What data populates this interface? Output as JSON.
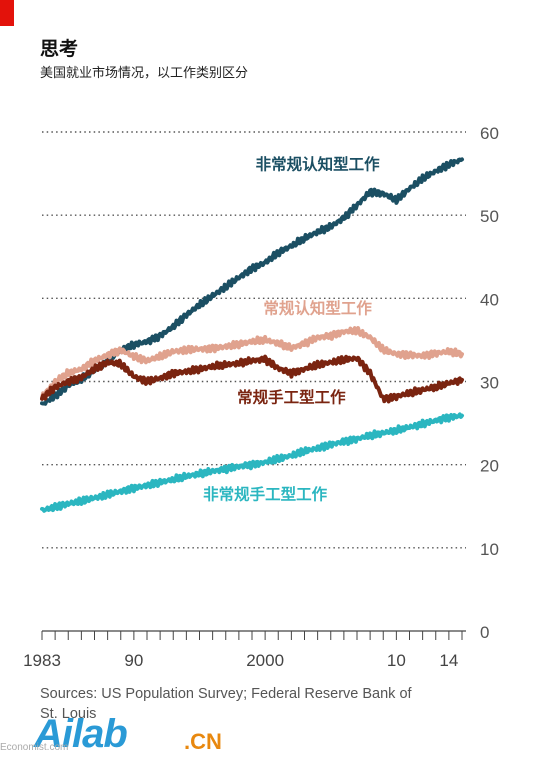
{
  "header": {
    "title": "思考",
    "subtitle": "美国就业市场情况，以工作类别区分"
  },
  "source": "Sources: US Population Survey; Federal Reserve Bank of St. Louis",
  "watermark": {
    "brand": "Ailab",
    "suffix": ".CN",
    "credit": "Economist.com"
  },
  "colors": {
    "non_routine_cognitive": "#1b4f63",
    "routine_cognitive": "#e0a28e",
    "routine_manual": "#7a2410",
    "non_routine_manual": "#2bb6c0",
    "accent": "#e3120b"
  },
  "chart_data": {
    "type": "line",
    "title": "思考",
    "subtitle": "美国就业市场情况，以工作类别区分",
    "xlim": [
      1983,
      2015
    ],
    "ylim": [
      0,
      60
    ],
    "y_ticks": [
      0,
      10,
      20,
      30,
      40,
      50,
      60
    ],
    "y_axis_side": "right",
    "x_tick_labels": [
      {
        "x": 1983,
        "label": "1983"
      },
      {
        "x": 1990,
        "label": "90"
      },
      {
        "x": 2000,
        "label": "2000"
      },
      {
        "x": 2010,
        "label": "10"
      },
      {
        "x": 2014,
        "label": "14"
      }
    ],
    "grid": "dotted horizontal",
    "series": [
      {
        "name": "非常规认知型工作",
        "key": "non_routine_cognitive",
        "x": [
          1983,
          1984,
          1985,
          1986,
          1987,
          1988,
          1989,
          1990,
          1991,
          1992,
          1993,
          1994,
          1995,
          1996,
          1997,
          1998,
          1999,
          2000,
          2001,
          2002,
          2003,
          2004,
          2005,
          2006,
          2007,
          2008,
          2009,
          2010,
          2011,
          2012,
          2013,
          2014,
          2015
        ],
        "y": [
          27.2,
          28.3,
          29.5,
          30.3,
          31.3,
          32.5,
          33.8,
          34.4,
          34.8,
          35.5,
          36.6,
          38.0,
          39.2,
          40.3,
          41.4,
          42.5,
          43.6,
          44.3,
          45.5,
          46.3,
          47.2,
          48.0,
          48.6,
          49.7,
          51.2,
          52.8,
          52.6,
          51.8,
          53.2,
          54.4,
          55.3,
          56.1,
          56.7
        ],
        "label_anchor": [
          2004,
          55.5
        ]
      },
      {
        "name": "常规认知型工作",
        "key": "routine_cognitive",
        "x": [
          1983,
          1984,
          1985,
          1986,
          1987,
          1988,
          1989,
          1990,
          1991,
          1992,
          1993,
          1994,
          1995,
          1996,
          1997,
          1998,
          1999,
          2000,
          2001,
          2002,
          2003,
          2004,
          2005,
          2006,
          2007,
          2008,
          2009,
          2010,
          2011,
          2012,
          2013,
          2014,
          2015
        ],
        "y": [
          28.0,
          30.0,
          31.0,
          31.5,
          32.5,
          33.2,
          33.8,
          33.0,
          32.5,
          33.0,
          33.6,
          33.8,
          33.9,
          34.0,
          34.2,
          34.5,
          34.8,
          35.0,
          34.6,
          34.0,
          34.6,
          35.3,
          35.5,
          36.0,
          36.1,
          35.3,
          33.8,
          33.3,
          33.2,
          33.1,
          33.4,
          33.6,
          33.3
        ],
        "label_anchor": [
          2004,
          38.2
        ]
      },
      {
        "name": "常规手工型工作",
        "key": "routine_manual",
        "x": [
          1983,
          1984,
          1985,
          1986,
          1987,
          1988,
          1989,
          1990,
          1991,
          1992,
          1993,
          1994,
          1995,
          1996,
          1997,
          1998,
          1999,
          2000,
          2001,
          2002,
          2003,
          2004,
          2005,
          2006,
          2007,
          2008,
          2009,
          2010,
          2011,
          2012,
          2013,
          2014,
          2015
        ],
        "y": [
          28.0,
          29.3,
          30.0,
          30.5,
          31.5,
          32.3,
          32.1,
          30.6,
          30.0,
          30.4,
          31.0,
          31.2,
          31.5,
          31.8,
          32.0,
          32.2,
          32.5,
          32.7,
          31.6,
          31.0,
          31.5,
          32.0,
          32.3,
          32.6,
          32.8,
          31.0,
          27.9,
          28.2,
          28.6,
          29.0,
          29.3,
          29.8,
          30.2
        ],
        "label_anchor": [
          2002,
          27.5
        ]
      },
      {
        "name": "非常规手工型工作",
        "key": "non_routine_manual",
        "x": [
          1983,
          1984,
          1985,
          1986,
          1987,
          1988,
          1989,
          1990,
          1991,
          1992,
          1993,
          1994,
          1995,
          1996,
          1997,
          1998,
          1999,
          2000,
          2001,
          2002,
          2003,
          2004,
          2005,
          2006,
          2007,
          2008,
          2009,
          2010,
          2011,
          2012,
          2013,
          2014,
          2015
        ],
        "y": [
          14.5,
          14.9,
          15.3,
          15.6,
          16.0,
          16.4,
          16.8,
          17.2,
          17.5,
          17.9,
          18.2,
          18.6,
          18.9,
          19.2,
          19.5,
          19.8,
          20.0,
          20.3,
          20.7,
          21.1,
          21.6,
          22.0,
          22.4,
          22.8,
          23.1,
          23.5,
          23.8,
          24.1,
          24.5,
          24.9,
          25.3,
          25.7,
          25.9
        ],
        "label_anchor": [
          2000,
          15.8
        ]
      }
    ]
  }
}
